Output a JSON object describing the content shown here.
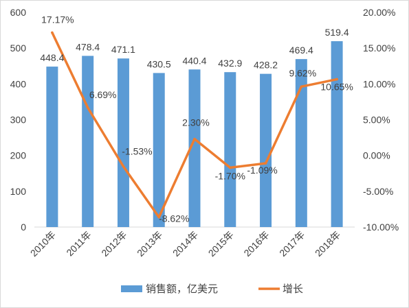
{
  "chart_data": {
    "type": "bar+line",
    "categories": [
      "2010年",
      "2011年",
      "2012年",
      "2013年",
      "2014年",
      "2015年",
      "2016年",
      "2017年",
      "2018年"
    ],
    "series": [
      {
        "name": "销售额，亿美元",
        "type": "bar",
        "axis": "left",
        "values": [
          448.4,
          478.4,
          471.1,
          430.5,
          440.4,
          432.9,
          428.2,
          469.4,
          519.4
        ],
        "labels": [
          "448.4",
          "478.4",
          "471.1",
          "430.5",
          "440.4",
          "432.9",
          "428.2",
          "469.4",
          "519.4"
        ],
        "color": "#5b9bd5"
      },
      {
        "name": "增长",
        "type": "line",
        "axis": "right",
        "values": [
          17.17,
          6.69,
          -1.53,
          -8.62,
          2.3,
          -1.7,
          -1.09,
          9.62,
          10.65
        ],
        "labels": [
          "17.17%",
          "6.69%",
          "-1.53%",
          "-8.62%",
          "2.30%",
          "-1.70%",
          "-1.09%",
          "9.62%",
          "10.65%"
        ],
        "color": "#ed7d31"
      }
    ],
    "y_left": {
      "min": 0,
      "max": 600,
      "ticks": [
        0,
        100,
        200,
        300,
        400,
        500,
        600
      ],
      "tick_labels": [
        "0",
        "100",
        "200",
        "300",
        "400",
        "500",
        "600"
      ]
    },
    "y_right": {
      "min": -10,
      "max": 20,
      "ticks": [
        -10,
        -5,
        0,
        5,
        10,
        15,
        20
      ],
      "tick_labels": [
        "-10.00%",
        "-5.00%",
        "0.00%",
        "5.00%",
        "10.00%",
        "15.00%",
        "20.00%"
      ]
    },
    "grid": false,
    "legend_position": "bottom"
  }
}
